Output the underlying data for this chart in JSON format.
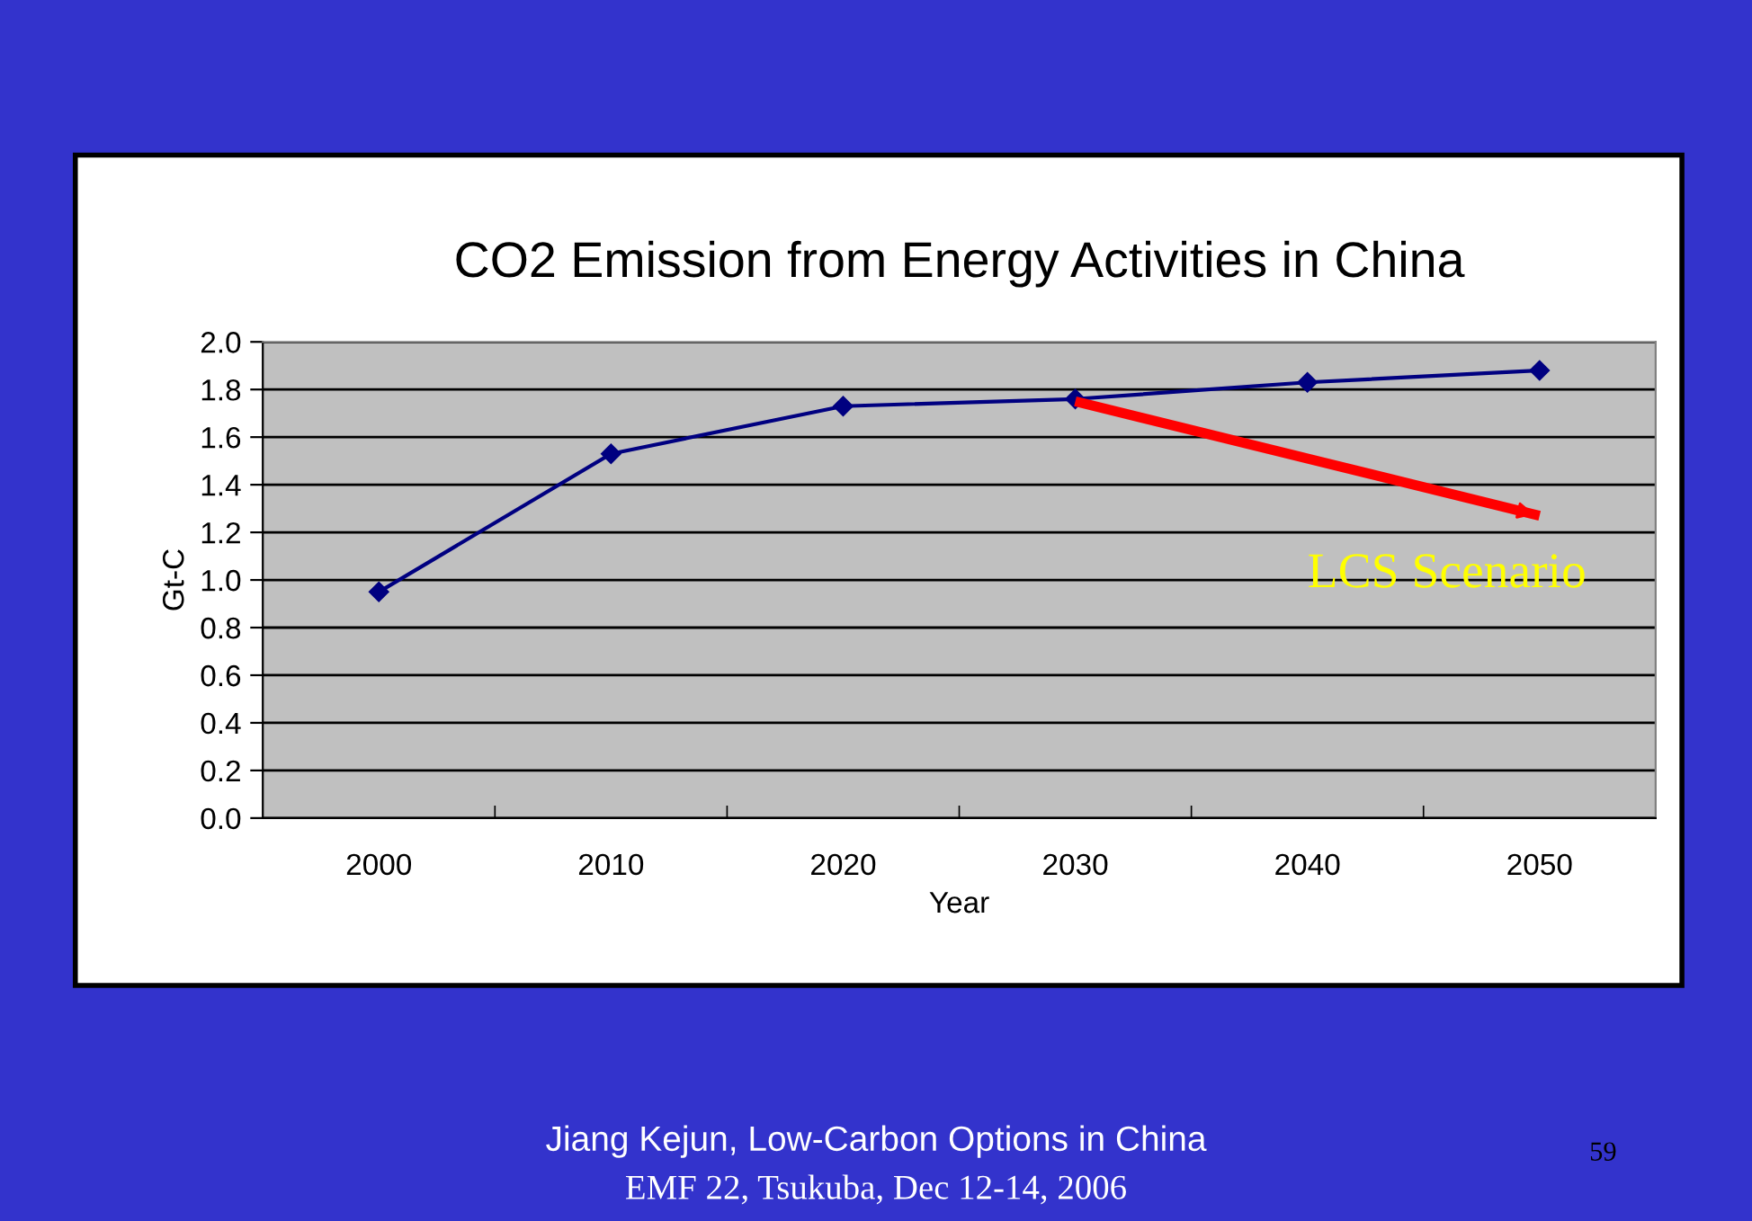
{
  "chart_data": {
    "type": "line",
    "title": "CO2 Emission from Energy Activities in China",
    "xlabel": "Year",
    "ylabel": "Gt-C",
    "categories": [
      "2000",
      "2010",
      "2020",
      "2030",
      "2040",
      "2050"
    ],
    "series": [
      {
        "color": "#000080",
        "values": [
          0.95,
          1.53,
          1.73,
          1.76,
          1.83,
          1.88
        ],
        "marker": "diamond"
      },
      {
        "color": "#ff0000",
        "values": [
          null,
          null,
          null,
          1.75,
          null,
          1.27
        ],
        "marker": "none"
      }
    ],
    "ylim": [
      0,
      2.0
    ],
    "yticks": [
      {
        "value": 0,
        "label": "0.0"
      },
      {
        "value": 0.2,
        "label": "0.2"
      },
      {
        "value": 0.4,
        "label": "0.4"
      },
      {
        "value": 0.6,
        "label": "0.6"
      },
      {
        "value": 0.8,
        "label": "0.8"
      },
      {
        "value": 1.0,
        "label": "1.0"
      },
      {
        "value": 1.2,
        "label": "1.2"
      },
      {
        "value": 1.4,
        "label": "1.4"
      },
      {
        "value": 1.6,
        "label": "1.6"
      },
      {
        "value": 1.8,
        "label": "1.8"
      },
      {
        "value": 2.0,
        "label": "2.0"
      }
    ],
    "grid": "y",
    "legend": false,
    "annotations": [
      "LCS Scenario",
      "Jiang Kejun, Low-Carbon Options in China",
      "EMF 22, Tsukuba, Dec 12-14, 2006",
      "59"
    ]
  }
}
